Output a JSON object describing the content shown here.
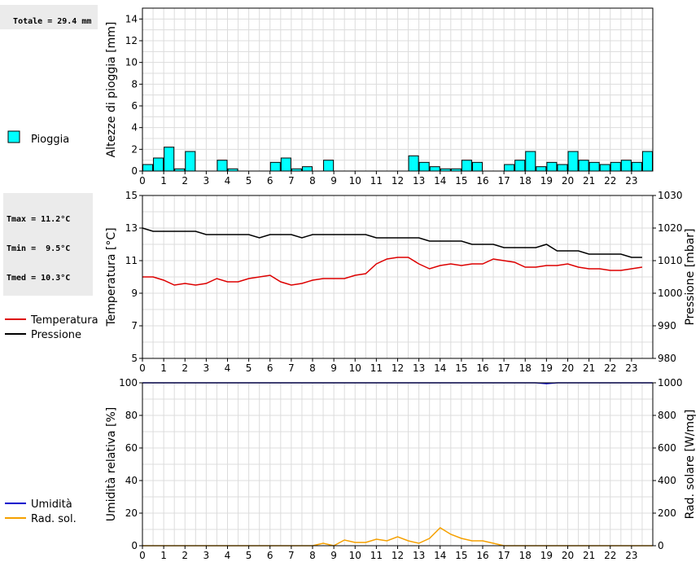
{
  "boxes": {
    "rain_total": "Totale = 29.4 mm",
    "temp_stats": [
      "Tmax = 11.2°C",
      "Tmin =  9.5°C",
      "Tmed = 10.3°C"
    ]
  },
  "chart_data": [
    {
      "type": "bar",
      "ylabel": "Altezze di pioggia [mm]",
      "ylim": [
        0,
        15
      ],
      "yticks": [
        0,
        2,
        4,
        6,
        8,
        10,
        12,
        14
      ],
      "xlim": [
        0,
        24
      ],
      "xticks": [
        "0",
        "1",
        "2",
        "3",
        "4",
        "5",
        "6",
        "7",
        "8",
        "9",
        "10",
        "11",
        "12",
        "13",
        "14",
        "15",
        "16",
        "17",
        "18",
        "19",
        "20",
        "21",
        "22",
        "23"
      ],
      "grid": true,
      "legend_placement": "left",
      "series": [
        {
          "name": "Pioggia",
          "color": "#00ffff",
          "bar_width_hours": 0.5,
          "x": [
            0,
            0.5,
            1,
            1.5,
            2,
            3.5,
            4,
            6,
            6.5,
            7,
            7.5,
            8.5,
            12.5,
            13,
            13.5,
            14,
            14.5,
            15,
            15.5,
            17,
            17.5,
            18,
            18.5,
            19,
            19.5,
            20,
            20.5,
            21,
            21.5,
            22,
            22.5,
            23,
            23.5
          ],
          "values": [
            0.6,
            1.2,
            2.2,
            0.2,
            1.8,
            1.0,
            0.2,
            0.8,
            1.2,
            0.2,
            0.4,
            1.0,
            1.4,
            0.8,
            0.4,
            0.2,
            0.2,
            1.0,
            0.8,
            0.6,
            1.0,
            1.8,
            0.4,
            0.8,
            0.6,
            1.8,
            1.0,
            0.8,
            0.6,
            0.8,
            1.0,
            0.8,
            1.8
          ]
        }
      ]
    },
    {
      "type": "line",
      "ylabel": "Temperatura [°C]",
      "ylabel_right": "Pressione [mbar]",
      "ylim": [
        5,
        15
      ],
      "yticks": [
        5,
        7,
        9,
        11,
        13,
        15
      ],
      "ylim_right": [
        980,
        1030
      ],
      "yticks_right": [
        980,
        990,
        1000,
        1010,
        1020,
        1030
      ],
      "xlim": [
        0,
        24
      ],
      "xticks": [
        "0",
        "1",
        "2",
        "3",
        "4",
        "5",
        "6",
        "7",
        "8",
        "9",
        "10",
        "11",
        "12",
        "13",
        "14",
        "15",
        "16",
        "17",
        "18",
        "19",
        "20",
        "21",
        "22",
        "23"
      ],
      "grid": true,
      "legend_placement": "left",
      "series": [
        {
          "name": "Temperatura",
          "color": "#dd0000",
          "axis": "left",
          "x": [
            0,
            0.5,
            1,
            1.5,
            2,
            2.5,
            3,
            3.5,
            4,
            4.5,
            5,
            5.5,
            6,
            6.5,
            7,
            7.5,
            8,
            8.5,
            9,
            9.5,
            10,
            10.5,
            11,
            11.5,
            12,
            12.5,
            13,
            13.5,
            14,
            14.5,
            15,
            15.5,
            16,
            16.5,
            17,
            17.5,
            18,
            18.5,
            19,
            19.5,
            20,
            20.5,
            21,
            21.5,
            22,
            22.5,
            23,
            23.5
          ],
          "values": [
            10.0,
            10.0,
            9.8,
            9.5,
            9.6,
            9.5,
            9.6,
            9.9,
            9.7,
            9.7,
            9.9,
            10.0,
            10.1,
            9.7,
            9.5,
            9.6,
            9.8,
            9.9,
            9.9,
            9.9,
            10.1,
            10.2,
            10.8,
            11.1,
            11.2,
            11.2,
            10.8,
            10.5,
            10.7,
            10.8,
            10.7,
            10.8,
            10.8,
            11.1,
            11.0,
            10.9,
            10.6,
            10.6,
            10.7,
            10.7,
            10.8,
            10.6,
            10.5,
            10.5,
            10.4,
            10.4,
            10.5,
            10.6
          ]
        },
        {
          "name": "Pressione",
          "color": "#000000",
          "axis": "right",
          "x": [
            0,
            0.5,
            1,
            1.5,
            2,
            2.5,
            3,
            3.5,
            4,
            4.5,
            5,
            5.5,
            6,
            6.5,
            7,
            7.5,
            8,
            8.5,
            9,
            9.5,
            10,
            10.5,
            11,
            11.5,
            12,
            12.5,
            13,
            13.5,
            14,
            14.5,
            15,
            15.5,
            16,
            16.5,
            17,
            17.5,
            18,
            18.5,
            19,
            19.5,
            20,
            20.5,
            21,
            21.5,
            22,
            22.5,
            23,
            23.5
          ],
          "values": [
            1020,
            1019,
            1019,
            1019,
            1019,
            1019,
            1018,
            1018,
            1018,
            1018,
            1018,
            1017,
            1018,
            1018,
            1018,
            1017,
            1018,
            1018,
            1018,
            1018,
            1018,
            1018,
            1017,
            1017,
            1017,
            1017,
            1017,
            1016,
            1016,
            1016,
            1016,
            1015,
            1015,
            1015,
            1014,
            1014,
            1014,
            1014,
            1015,
            1013,
            1013,
            1013,
            1012,
            1012,
            1012,
            1012,
            1011,
            1011
          ]
        }
      ]
    },
    {
      "type": "line",
      "ylabel": "Umidità relativa [%]",
      "ylabel_right": "Rad. solare [W/mq]",
      "ylim": [
        0,
        100
      ],
      "yticks": [
        0,
        20,
        40,
        60,
        80,
        100
      ],
      "ylim_right": [
        0,
        1000
      ],
      "yticks_right": [
        0,
        200,
        400,
        600,
        800,
        1000
      ],
      "xlim": [
        0,
        24
      ],
      "xticks": [
        "0",
        "1",
        "2",
        "3",
        "4",
        "5",
        "6",
        "7",
        "8",
        "9",
        "10",
        "11",
        "12",
        "13",
        "14",
        "15",
        "16",
        "17",
        "18",
        "19",
        "20",
        "21",
        "22",
        "23"
      ],
      "grid": true,
      "legend_placement": "left",
      "series": [
        {
          "name": "Umidità",
          "color": "#0000cc",
          "axis": "left",
          "x": [
            0,
            18.5,
            19,
            19.5,
            24
          ],
          "values": [
            100,
            100,
            99.5,
            100,
            100
          ]
        },
        {
          "name": "Rad. sol.",
          "color": "#f5a000",
          "axis": "right",
          "x": [
            0,
            8,
            8.5,
            9,
            9.5,
            10,
            10.5,
            11,
            11.5,
            12,
            12.5,
            13,
            13.5,
            14,
            14.5,
            15,
            15.5,
            16,
            16.5,
            17,
            24
          ],
          "values": [
            0,
            0,
            15,
            0,
            35,
            20,
            20,
            40,
            30,
            55,
            30,
            15,
            45,
            110,
            70,
            45,
            30,
            30,
            15,
            0,
            0
          ]
        }
      ]
    }
  ]
}
